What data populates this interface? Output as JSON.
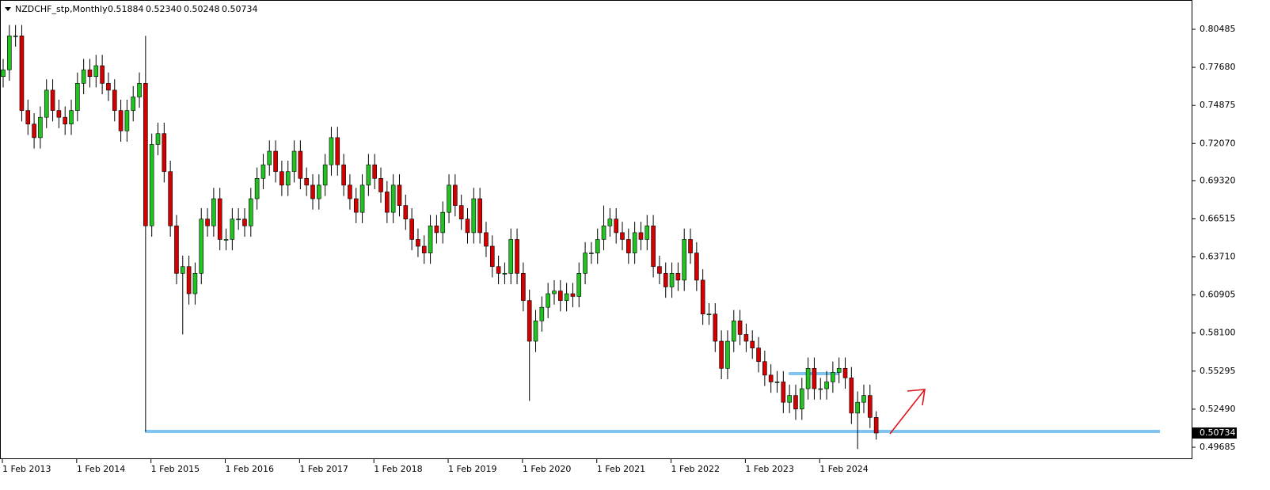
{
  "chart_data": {
    "type": "candlestick",
    "title": "NZDCHF_stp,Monthly",
    "header_ohlc": [
      0.51884,
      {
        "value": 0.5234,
        "label": "0.52340"
      },
      0.50248,
      0.50734
    ],
    "last_price": 0.50734,
    "levels": [
      0.5085,
      0.5511
    ],
    "up_color": "#22c222",
    "down_color": "#d40000",
    "level_color": "#80c4f2",
    "ylim": [
      0.4881,
      0.82643
    ],
    "yticks": [
      0.80485,
      {
        "value": 0.7768,
        "label": "0.77680"
      },
      0.74875,
      {
        "value": 0.7207,
        "label": "0.72070"
      },
      {
        "value": 0.6932,
        "label": "0.69320"
      },
      0.66515,
      {
        "value": 0.6371,
        "label": "0.63710"
      },
      0.60905,
      {
        "value": 0.581,
        "label": "0.58100"
      },
      0.55295,
      {
        "value": 0.5249,
        "label": "0.52490"
      },
      0.49685
    ],
    "categories": [
      "1 Feb 2013",
      null,
      null,
      null,
      null,
      null,
      null,
      null,
      null,
      null,
      null,
      null,
      "1 Feb 2014",
      null,
      null,
      null,
      null,
      null,
      null,
      null,
      null,
      null,
      null,
      null,
      "1 Feb 2015",
      null,
      null,
      null,
      null,
      null,
      null,
      null,
      null,
      null,
      null,
      null,
      "1 Feb 2016",
      null,
      null,
      null,
      null,
      null,
      null,
      null,
      null,
      null,
      null,
      null,
      "1 Feb 2017",
      null,
      null,
      null,
      null,
      null,
      null,
      null,
      null,
      null,
      null,
      null,
      "1 Feb 2018",
      null,
      null,
      null,
      null,
      null,
      null,
      null,
      null,
      null,
      null,
      null,
      "1 Feb 2019",
      null,
      null,
      null,
      null,
      null,
      null,
      null,
      null,
      null,
      null,
      null,
      "1 Feb 2020",
      null,
      null,
      null,
      null,
      null,
      null,
      null,
      null,
      null,
      null,
      null,
      "1 Feb 2021",
      null,
      null,
      null,
      null,
      null,
      null,
      null,
      null,
      null,
      null,
      null,
      "1 Feb 2022",
      null,
      null,
      null,
      null,
      null,
      null,
      null,
      null,
      null,
      null,
      null,
      "1 Feb 2023",
      null,
      null,
      null,
      null,
      null,
      null,
      null,
      null,
      null,
      null,
      null,
      "1 Feb 2024",
      null,
      null,
      null,
      null,
      null,
      null,
      null,
      null,
      null
    ],
    "ohlc": [
      [
        0.77,
        0.783,
        0.762,
        0.775
      ],
      [
        0.775,
        0.808,
        0.767,
        0.8
      ],
      [
        0.8,
        0.808,
        0.792,
        0.8
      ],
      [
        0.8,
        0.808,
        0.737,
        0.745
      ],
      [
        0.745,
        0.753,
        0.727,
        0.735
      ],
      [
        0.735,
        0.743,
        0.717,
        0.725
      ],
      [
        0.725,
        0.748,
        0.717,
        0.74
      ],
      [
        0.74,
        0.768,
        0.732,
        0.76
      ],
      [
        0.76,
        0.768,
        0.737,
        0.745
      ],
      [
        0.745,
        0.753,
        0.732,
        0.74
      ],
      [
        0.74,
        0.748,
        0.727,
        0.735
      ],
      [
        0.735,
        0.753,
        0.727,
        0.745
      ],
      [
        0.745,
        0.773,
        0.737,
        0.765
      ],
      [
        0.765,
        0.783,
        0.757,
        0.775
      ],
      [
        0.775,
        0.783,
        0.762,
        0.77
      ],
      [
        0.77,
        0.786,
        0.762,
        0.778
      ],
      [
        0.778,
        0.786,
        0.757,
        0.765
      ],
      [
        0.765,
        0.773,
        0.752,
        0.76
      ],
      [
        0.76,
        0.768,
        0.737,
        0.745
      ],
      [
        0.745,
        0.753,
        0.722,
        0.73
      ],
      [
        0.73,
        0.753,
        0.722,
        0.745
      ],
      [
        0.745,
        0.763,
        0.737,
        0.755
      ],
      [
        0.755,
        0.773,
        0.747,
        0.765
      ],
      [
        0.765,
        0.8,
        0.5085,
        0.66
      ],
      [
        0.66,
        0.728,
        0.652,
        0.72
      ],
      [
        0.72,
        0.736,
        0.712,
        0.728
      ],
      [
        0.728,
        0.736,
        0.692,
        0.7
      ],
      [
        0.7,
        0.708,
        0.652,
        0.66
      ],
      [
        0.66,
        0.668,
        0.617,
        0.625
      ],
      [
        0.625,
        0.638,
        0.58,
        0.63
      ],
      [
        0.63,
        0.638,
        0.602,
        0.61
      ],
      [
        0.61,
        0.633,
        0.602,
        0.625
      ],
      [
        0.625,
        0.673,
        0.617,
        0.665
      ],
      [
        0.665,
        0.673,
        0.652,
        0.66
      ],
      [
        0.66,
        0.688,
        0.652,
        0.68
      ],
      [
        0.68,
        0.688,
        0.642,
        0.65
      ],
      [
        0.65,
        0.658,
        0.642,
        0.65
      ],
      [
        0.65,
        0.673,
        0.642,
        0.665
      ],
      [
        0.665,
        0.673,
        0.657,
        0.665
      ],
      [
        0.665,
        0.673,
        0.652,
        0.66
      ],
      [
        0.66,
        0.688,
        0.652,
        0.68
      ],
      [
        0.68,
        0.703,
        0.672,
        0.695
      ],
      [
        0.695,
        0.713,
        0.687,
        0.705
      ],
      [
        0.705,
        0.723,
        0.697,
        0.715
      ],
      [
        0.715,
        0.723,
        0.692,
        0.7
      ],
      [
        0.7,
        0.708,
        0.682,
        0.69
      ],
      [
        0.69,
        0.708,
        0.682,
        0.7
      ],
      [
        0.7,
        0.723,
        0.692,
        0.715
      ],
      [
        0.715,
        0.723,
        0.687,
        0.695
      ],
      [
        0.695,
        0.703,
        0.682,
        0.69
      ],
      [
        0.69,
        0.698,
        0.672,
        0.68
      ],
      [
        0.68,
        0.698,
        0.672,
        0.69
      ],
      [
        0.69,
        0.713,
        0.682,
        0.705
      ],
      [
        0.705,
        0.733,
        0.697,
        0.725
      ],
      [
        0.725,
        0.733,
        0.697,
        0.705
      ],
      [
        0.705,
        0.713,
        0.682,
        0.69
      ],
      [
        0.69,
        0.698,
        0.672,
        0.68
      ],
      [
        0.68,
        0.688,
        0.662,
        0.67
      ],
      [
        0.67,
        0.698,
        0.662,
        0.69
      ],
      [
        0.69,
        0.713,
        0.682,
        0.705
      ],
      [
        0.705,
        0.713,
        0.687,
        0.695
      ],
      [
        0.695,
        0.703,
        0.677,
        0.685
      ],
      [
        0.685,
        0.693,
        0.662,
        0.67
      ],
      [
        0.67,
        0.698,
        0.662,
        0.69
      ],
      [
        0.69,
        0.698,
        0.667,
        0.675
      ],
      [
        0.675,
        0.683,
        0.657,
        0.665
      ],
      [
        0.665,
        0.673,
        0.642,
        0.65
      ],
      [
        0.65,
        0.658,
        0.637,
        0.645
      ],
      [
        0.645,
        0.653,
        0.632,
        0.64
      ],
      [
        0.64,
        0.668,
        0.632,
        0.66
      ],
      [
        0.66,
        0.668,
        0.647,
        0.655
      ],
      [
        0.655,
        0.678,
        0.647,
        0.67
      ],
      [
        0.67,
        0.698,
        0.662,
        0.69
      ],
      [
        0.69,
        0.698,
        0.667,
        0.675
      ],
      [
        0.675,
        0.683,
        0.657,
        0.665
      ],
      [
        0.665,
        0.673,
        0.647,
        0.655
      ],
      [
        0.655,
        0.688,
        0.647,
        0.68
      ],
      [
        0.68,
        0.688,
        0.647,
        0.655
      ],
      [
        0.655,
        0.663,
        0.637,
        0.645
      ],
      [
        0.645,
        0.653,
        0.622,
        0.63
      ],
      [
        0.63,
        0.638,
        0.617,
        0.625
      ],
      [
        0.625,
        0.633,
        0.617,
        0.625
      ],
      [
        0.625,
        0.658,
        0.617,
        0.65
      ],
      [
        0.65,
        0.658,
        0.617,
        0.625
      ],
      [
        0.625,
        0.633,
        0.597,
        0.605
      ],
      [
        0.605,
        0.613,
        0.531,
        0.575
      ],
      [
        0.575,
        0.598,
        0.567,
        0.59
      ],
      [
        0.59,
        0.608,
        0.582,
        0.6
      ],
      [
        0.6,
        0.618,
        0.592,
        0.61
      ],
      [
        0.61,
        0.62,
        0.602,
        0.612
      ],
      [
        0.612,
        0.62,
        0.597,
        0.605
      ],
      [
        0.605,
        0.618,
        0.597,
        0.61
      ],
      [
        0.61,
        0.618,
        0.6,
        0.608
      ],
      [
        0.608,
        0.633,
        0.6,
        0.625
      ],
      [
        0.625,
        0.648,
        0.617,
        0.64
      ],
      [
        0.64,
        0.648,
        0.632,
        0.64
      ],
      [
        0.64,
        0.658,
        0.632,
        0.65
      ],
      [
        0.65,
        0.675,
        0.642,
        0.66
      ],
      [
        0.66,
        0.673,
        0.652,
        0.665
      ],
      [
        0.665,
        0.673,
        0.647,
        0.655
      ],
      [
        0.655,
        0.663,
        0.642,
        0.65
      ],
      [
        0.65,
        0.658,
        0.632,
        0.64
      ],
      [
        0.64,
        0.663,
        0.632,
        0.655
      ],
      [
        0.655,
        0.663,
        0.642,
        0.65
      ],
      [
        0.65,
        0.668,
        0.642,
        0.66
      ],
      [
        0.66,
        0.668,
        0.622,
        0.63
      ],
      [
        0.63,
        0.638,
        0.617,
        0.625
      ],
      [
        0.625,
        0.633,
        0.607,
        0.615
      ],
      [
        0.615,
        0.633,
        0.607,
        0.625
      ],
      [
        0.625,
        0.633,
        0.612,
        0.62
      ],
      [
        0.62,
        0.658,
        0.612,
        0.65
      ],
      [
        0.65,
        0.658,
        0.632,
        0.64
      ],
      [
        0.64,
        0.648,
        0.612,
        0.62
      ],
      [
        0.62,
        0.628,
        0.587,
        0.595
      ],
      [
        0.595,
        0.603,
        0.587,
        0.595
      ],
      [
        0.595,
        0.603,
        0.567,
        0.575
      ],
      [
        0.575,
        0.583,
        0.547,
        0.555
      ],
      [
        0.555,
        0.583,
        0.547,
        0.575
      ],
      [
        0.575,
        0.598,
        0.567,
        0.59
      ],
      [
        0.59,
        0.598,
        0.572,
        0.58
      ],
      [
        0.58,
        0.588,
        0.567,
        0.575
      ],
      [
        0.575,
        0.583,
        0.562,
        0.57
      ],
      [
        0.57,
        0.578,
        0.552,
        0.56
      ],
      [
        0.56,
        0.568,
        0.542,
        0.55
      ],
      [
        0.55,
        0.558,
        0.537,
        0.545
      ],
      [
        0.545,
        0.553,
        0.537,
        0.545
      ],
      [
        0.545,
        0.553,
        0.522,
        0.53
      ],
      [
        0.53,
        0.543,
        0.522,
        0.535
      ],
      [
        0.535,
        0.543,
        0.517,
        0.525
      ],
      [
        0.525,
        0.548,
        0.517,
        0.54
      ],
      [
        0.54,
        0.563,
        0.532,
        0.555
      ],
      [
        0.555,
        0.563,
        0.532,
        0.54
      ],
      [
        0.54,
        0.548,
        0.532,
        0.54
      ],
      [
        0.54,
        0.553,
        0.532,
        0.545
      ],
      [
        0.545,
        0.56,
        0.537,
        0.552
      ],
      [
        0.552,
        0.563,
        0.544,
        0.555
      ],
      [
        0.555,
        0.563,
        0.54,
        0.548
      ],
      [
        0.548,
        0.556,
        0.514,
        0.522
      ],
      [
        0.522,
        0.538,
        0.4955,
        0.53
      ],
      [
        0.53,
        0.543,
        0.522,
        0.535
      ],
      [
        0.535,
        0.543,
        0.511,
        0.51884
      ],
      [
        0.51884,
        0.5234,
        0.50248,
        0.50734
      ]
    ]
  }
}
